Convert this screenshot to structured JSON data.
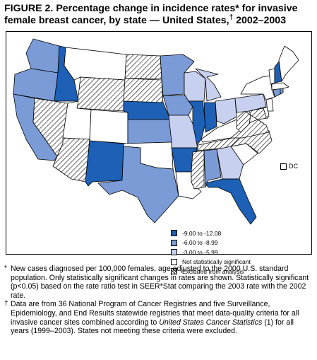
{
  "title": {
    "line1": "FIGURE 2. Percentage change in incidence rates* for invasive",
    "line2_prefix": "female breast cancer, by state — United States,",
    "line2_dagger": "†",
    "line2_suffix": " 2002–2003"
  },
  "colors": {
    "dark": "#1d60b5",
    "medium": "#7b9bd6",
    "light": "#c7d0ee",
    "not_significant": "#ffffff",
    "excluded": "hatched"
  },
  "legend": {
    "items": [
      {
        "label": "-9.00 to -12.08",
        "color": "#1d60b5"
      },
      {
        "label": "-6.00 to -8.99",
        "color": "#7b9bd6"
      },
      {
        "label": "-3.00 to -5.99",
        "color": "#c7d0ee"
      },
      {
        "label": "Not statistically significant",
        "color": "#ffffff"
      },
      {
        "label": "Excluded from analysis",
        "color": "hatched"
      }
    ]
  },
  "dc_label": "DC",
  "notes": {
    "n1_mark": "*",
    "n1_text": "New cases diagnosed per 100,000 females, age adjusted to the 2000 U.S. standard population. Only statistically significant changes in rates are shown. Statistically significant (p<0.05) based on the rate ratio test in SEER*Stat comparing the 2003 rate with the 2002 rate.",
    "n2_mark": "†",
    "n2_text_a": "Data are from 36 National Program of Cancer Registries and five Surveillance, Epidemiology, and End Results statewide registries that meet data-quality criteria for all invasive cancer sites combined according to ",
    "n2_italic": "United States Cancer Statistics",
    "n2_text_b": " (1) for all years (1999–2003). States not meeting these criteria were excluded."
  }
}
